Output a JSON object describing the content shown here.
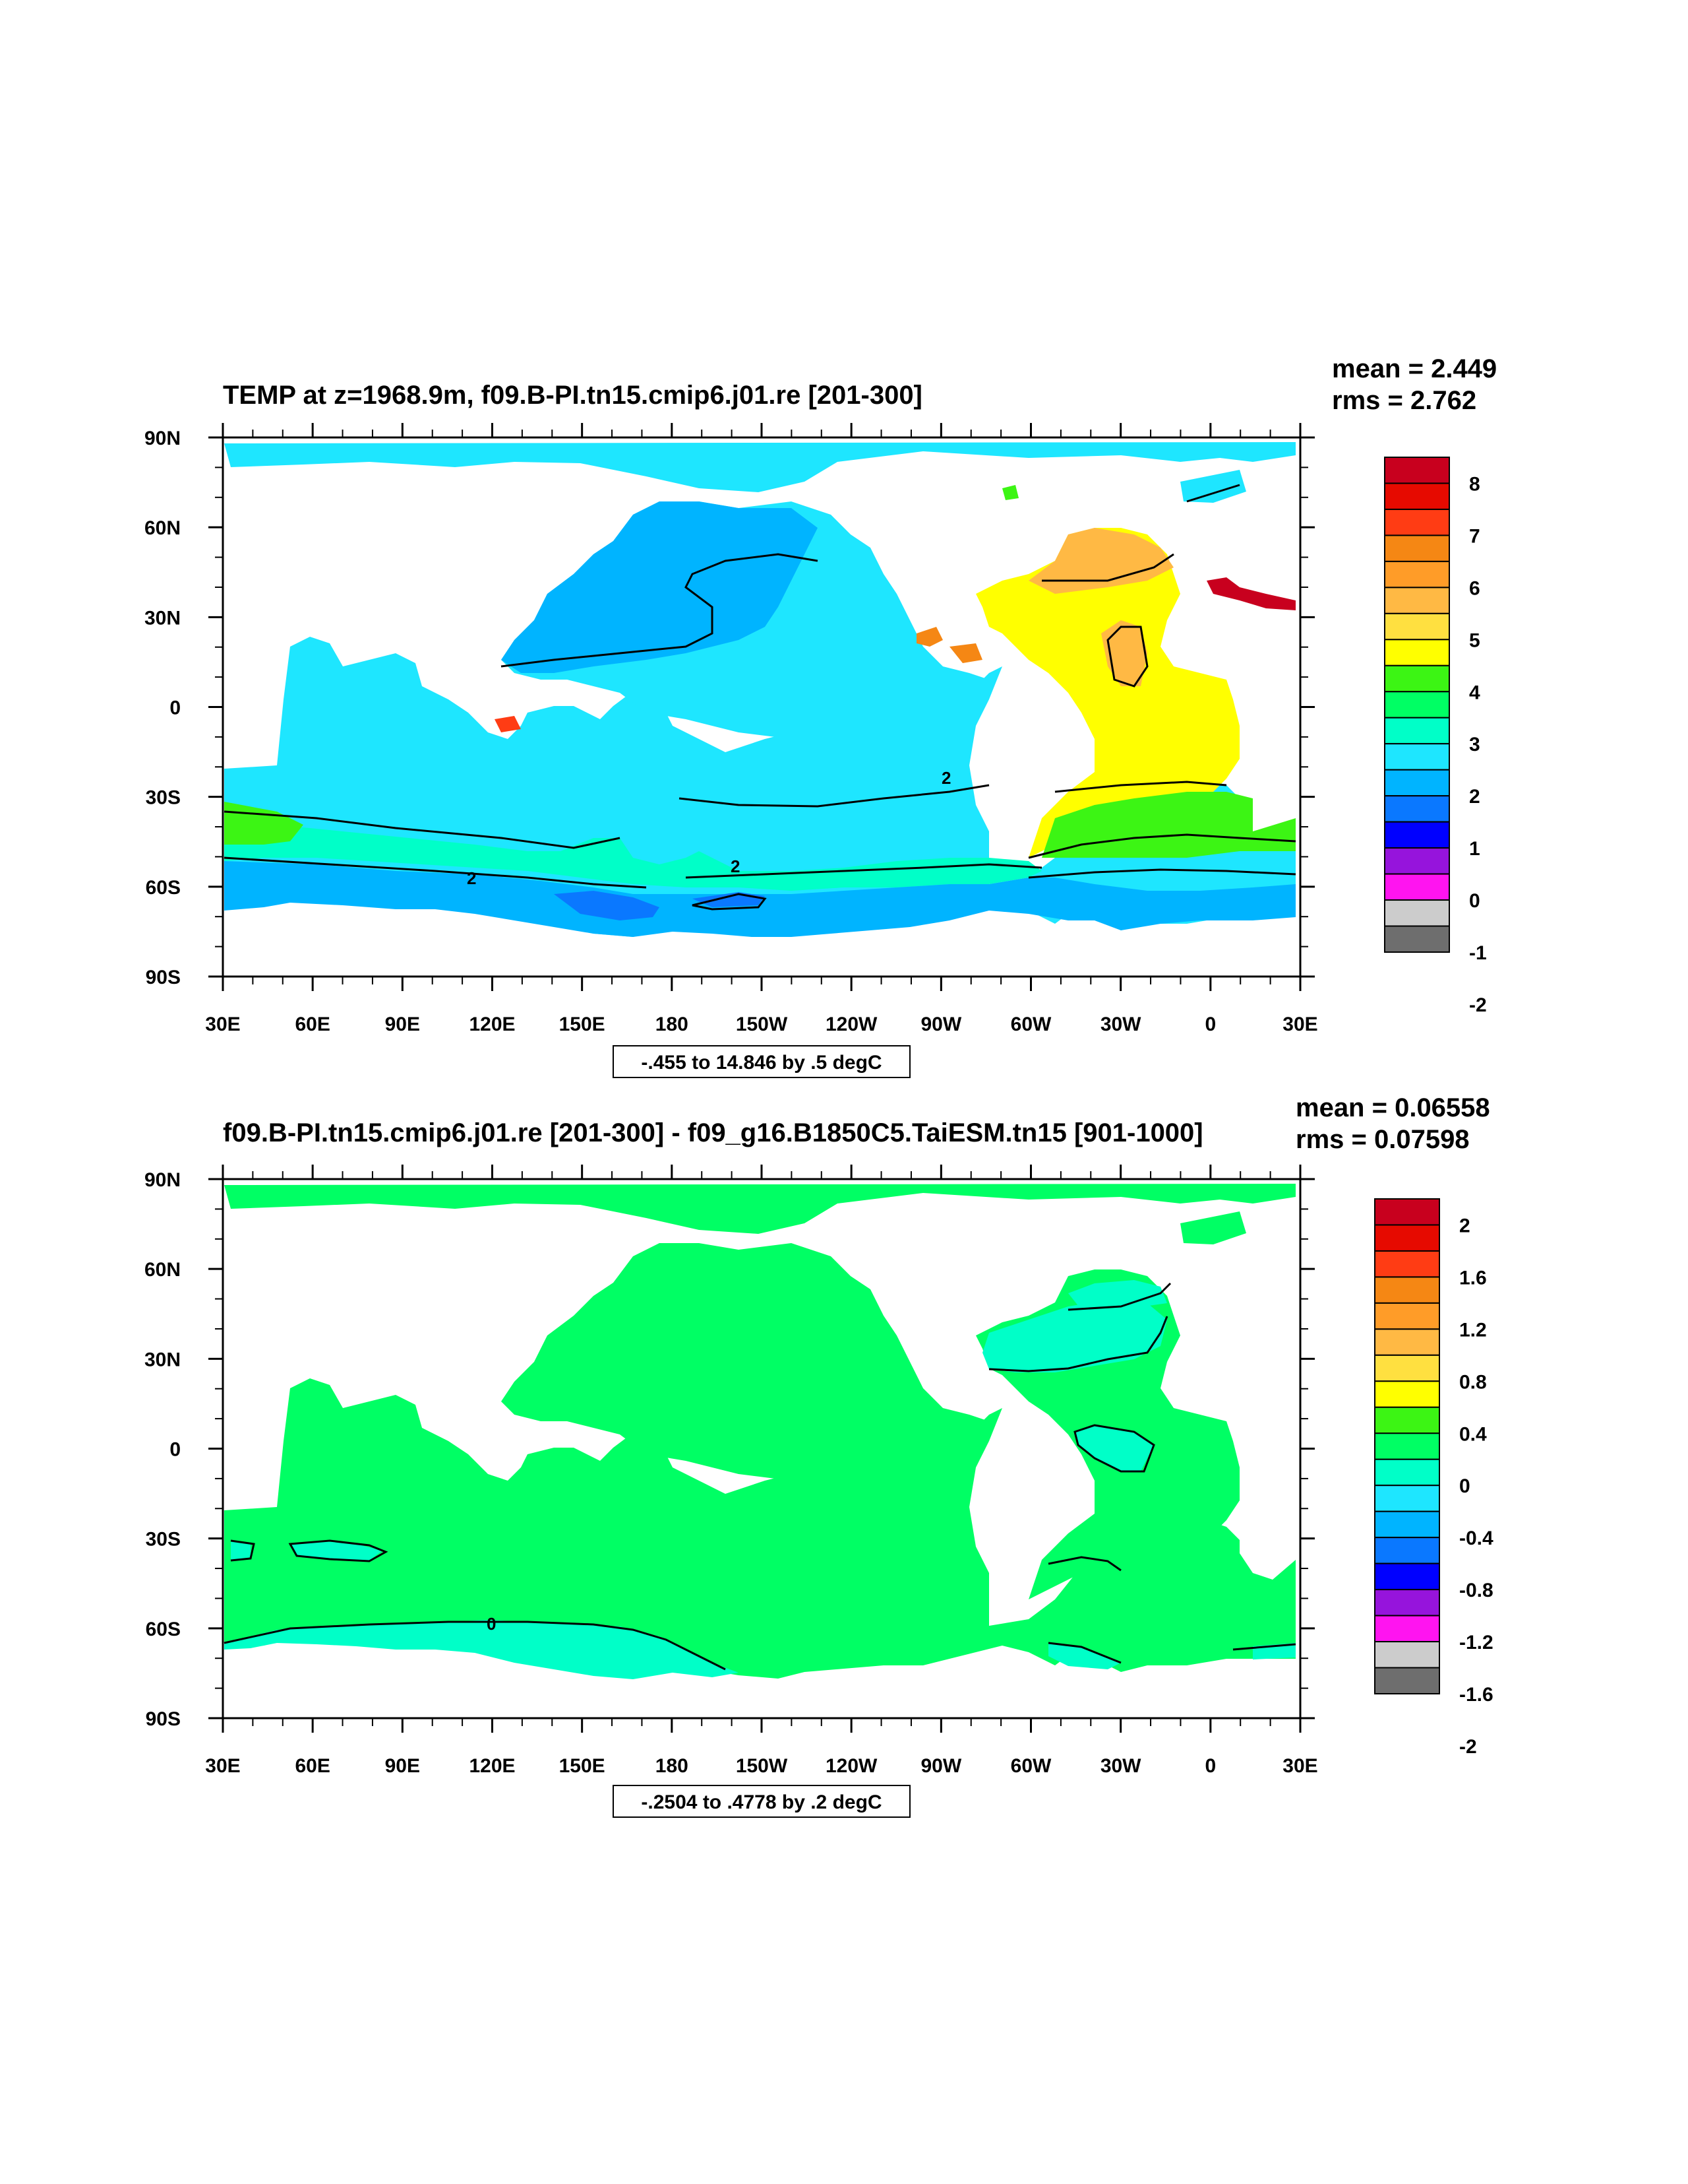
{
  "panels": [
    {
      "title": "TEMP at z=1968.9m, f09.B-PI.tn15.cmip6.j01.re [201-300]",
      "mean": "mean = 2.449",
      "rms": "rms = 2.762",
      "contour_info": "-.455 to 14.846 by .5 degC",
      "colorbar_labels": [
        "8",
        "7",
        "6",
        "5",
        "4",
        "3",
        "2",
        "1",
        "0",
        "-1",
        "-2"
      ],
      "colorbar_colors": [
        "#c8001e",
        "#e60a00",
        "#ff3c14",
        "#f58714",
        "#ff9c28",
        "#ffb944",
        "#ffe040",
        "#ffff00",
        "#3cf514",
        "#00ff64",
        "#00ffc8",
        "#1ee6ff",
        "#00b4ff",
        "#0a78ff",
        "#0000ff",
        "#9614dc",
        "#ff14f0",
        "#cccccc",
        "#6e6e6e"
      ],
      "contour_labels": [
        "2",
        "2",
        "2"
      ]
    },
    {
      "title": "f09.B-PI.tn15.cmip6.j01.re [201-300] - f09_g16.B1850C5.TaiESM.tn15 [901-1000]",
      "mean": "mean = 0.06558",
      "rms": "rms = 0.07598",
      "contour_info": "-.2504 to .4778 by .2 degC",
      "colorbar_labels": [
        "2",
        "1.6",
        "1.2",
        "0.8",
        "0.4",
        "0",
        "-0.4",
        "-0.8",
        "-1.2",
        "-1.6",
        "-2"
      ],
      "colorbar_colors": [
        "#c8001e",
        "#e60a00",
        "#ff3c14",
        "#f58714",
        "#ff9c28",
        "#ffb944",
        "#ffe040",
        "#ffff00",
        "#3cf514",
        "#00ff64",
        "#00ffc8",
        "#1ee6ff",
        "#00b4ff",
        "#0a78ff",
        "#0000ff",
        "#9614dc",
        "#ff14f0",
        "#cccccc",
        "#6e6e6e"
      ],
      "contour_labels": [
        "0"
      ]
    }
  ],
  "axes": {
    "lat_ticks": [
      "90N",
      "60N",
      "30N",
      "0",
      "30S",
      "60S",
      "90S"
    ],
    "lon_ticks": [
      "30E",
      "60E",
      "90E",
      "120E",
      "150E",
      "180",
      "150W",
      "120W",
      "90W",
      "60W",
      "30W",
      "0",
      "30E"
    ]
  }
}
